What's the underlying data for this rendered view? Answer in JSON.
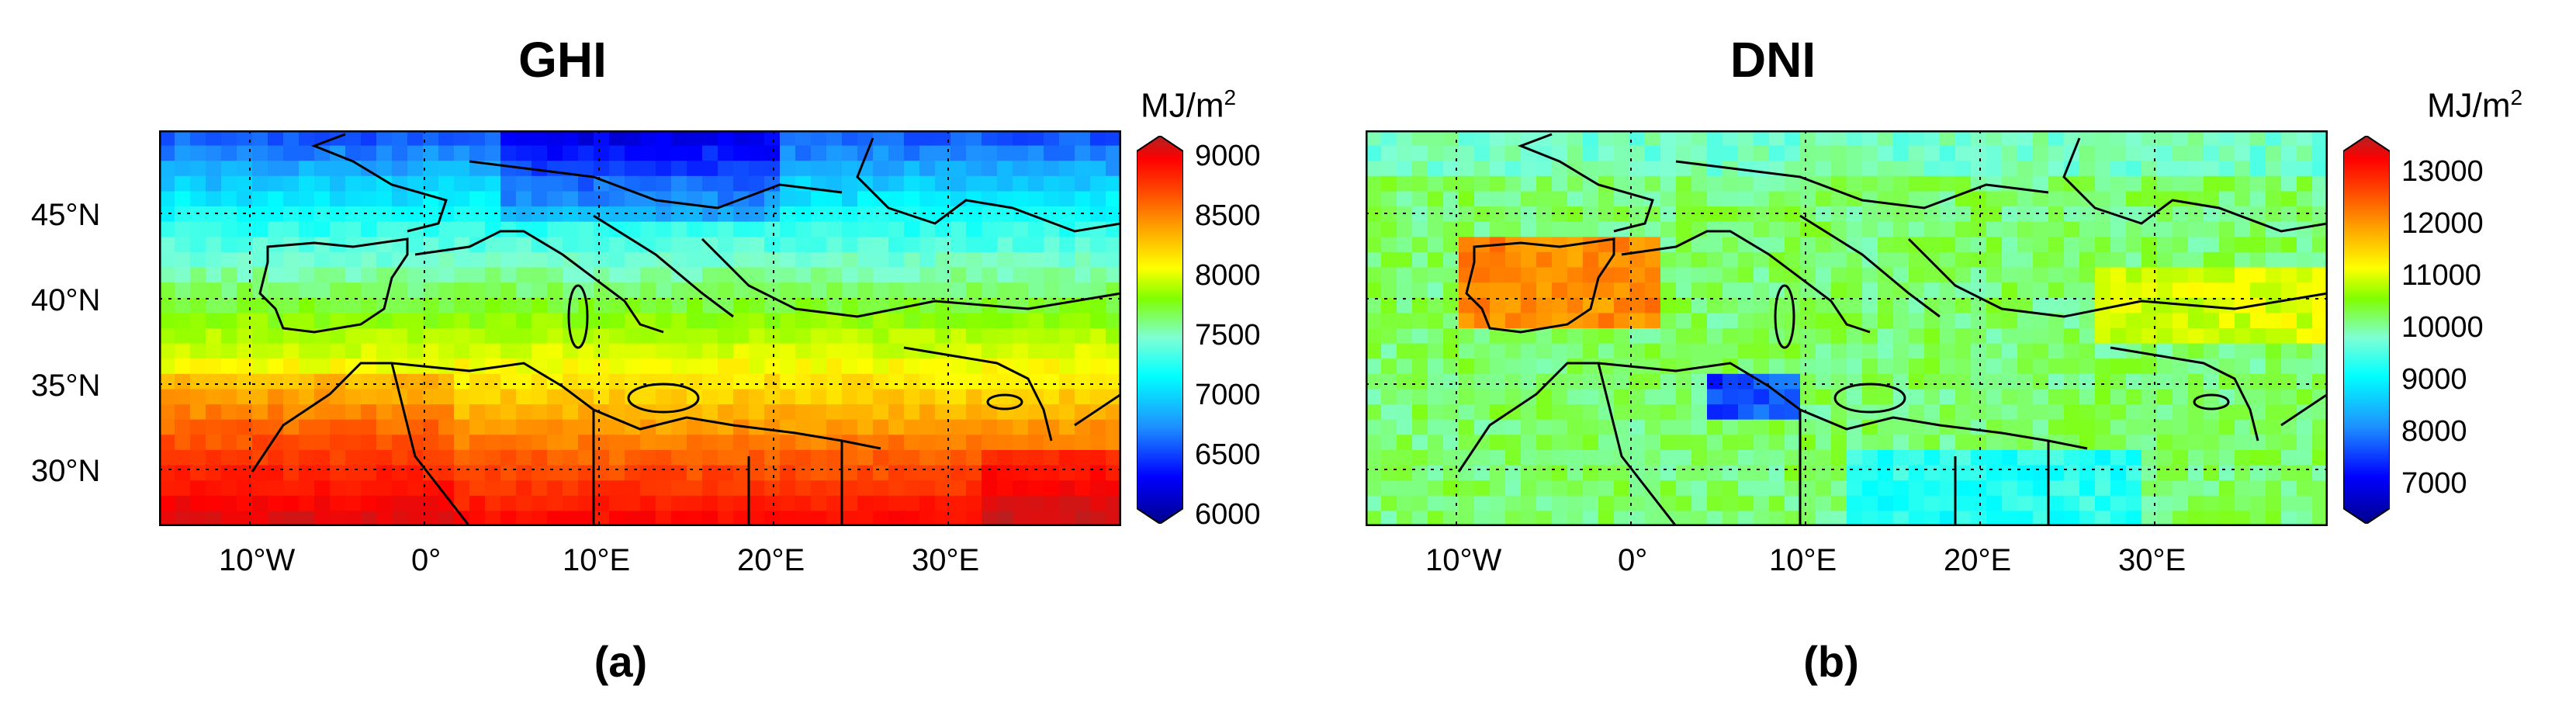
{
  "colors": {
    "scale": [
      "#00008b",
      "#0000ff",
      "#1e90ff",
      "#00ffff",
      "#7fffd4",
      "#7fff00",
      "#ffff00",
      "#ffa500",
      "#ff4500",
      "#ff0000",
      "#b22222"
    ],
    "grid": "#000000",
    "border": "#000000"
  },
  "latitude_ticks": [
    "45°N",
    "40°N",
    "35°N",
    "30°N"
  ],
  "longitude_ticks": [
    "10°W",
    "0°",
    "10°E",
    "20°E",
    "30°E"
  ],
  "panels": [
    {
      "title": "GHI",
      "label": "(a)",
      "unit_text": "MJ/m",
      "unit_sup": "2",
      "colorbar_ticks": [
        "9000",
        "8500",
        "8000",
        "7500",
        "7000",
        "6500",
        "6000"
      ],
      "colorbar_range": [
        6000,
        9000
      ],
      "field": "ghi"
    },
    {
      "title": "DNI",
      "label": "(b)",
      "unit_text": "MJ/m",
      "unit_sup": "2",
      "colorbar_ticks": [
        "13000",
        "12000",
        "11000",
        "10000",
        "9000",
        "8000",
        "7000"
      ],
      "colorbar_range": [
        6500,
        13500
      ],
      "field": "dni"
    }
  ]
}
